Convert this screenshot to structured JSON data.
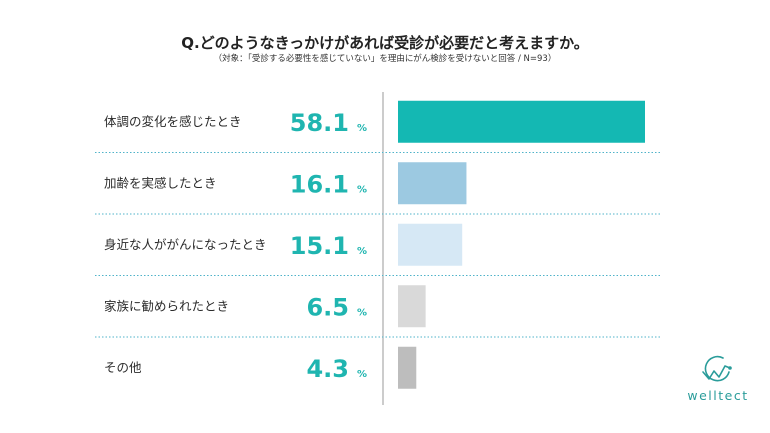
{
  "title": "Q.どのようなきっかけがあれば受診が必要だと考えますか。",
  "subtitle": "（対象：「受診する必要性を感じていない」を理由にがん検診を受けないと回答 / N=93）",
  "chart_data": {
    "type": "bar",
    "orientation": "horizontal",
    "categories": [
      "体調の変化を感じたとき",
      "加齢を実感したとき",
      "身近な人ががんになったとき",
      "家族に勧められたとき",
      "その他"
    ],
    "values": [
      58.1,
      16.1,
      15.1,
      6.5,
      4.3
    ],
    "value_labels": [
      "58.1",
      "16.1",
      "15.1",
      "6.5",
      "4.3"
    ],
    "unit": "%",
    "bar_colors": [
      "#14b8b3",
      "#9cc9e1",
      "#d6e8f5",
      "#d9d9d9",
      "#bdbdbd"
    ],
    "value_color": "#1fb5b0",
    "grid": false
  },
  "logo": {
    "text": "welltect",
    "icon": "wave-circle-logo-icon",
    "color": "#2a9c9a"
  }
}
